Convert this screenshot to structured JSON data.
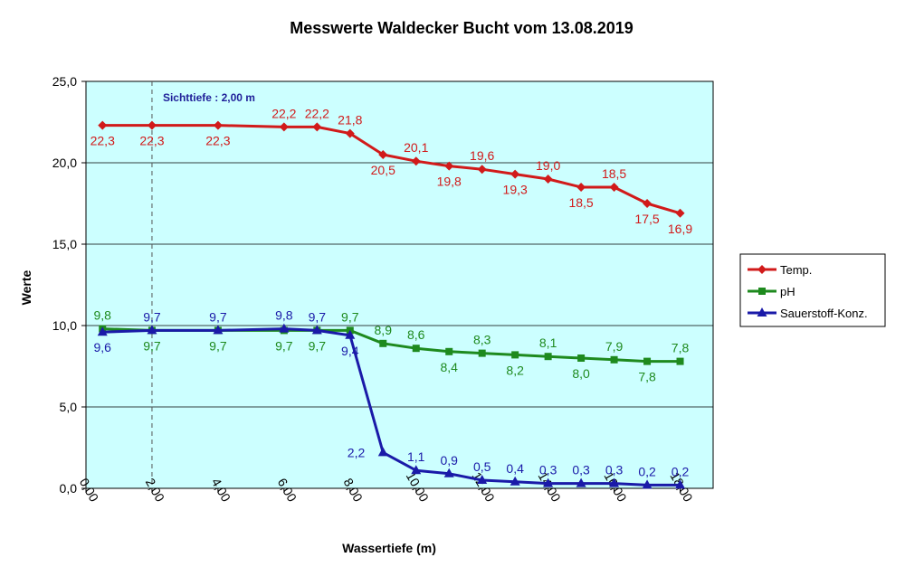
{
  "chart_data": {
    "type": "line",
    "title": "Messwerte Waldecker Bucht vom 13.08.2019",
    "xlabel": "Wassertiefe (m)",
    "ylabel": "Werte",
    "xlim": [
      0,
      19
    ],
    "ylim": [
      0,
      25
    ],
    "x_ticks": [
      "0,00",
      "2,00",
      "4,00",
      "6,00",
      "8,00",
      "10,00",
      "12,00",
      "14,00",
      "16,00",
      "18,00"
    ],
    "x_tick_values": [
      0,
      2,
      4,
      6,
      8,
      10,
      12,
      14,
      16,
      18
    ],
    "y_ticks": [
      "0,0",
      "5,0",
      "10,0",
      "15,0",
      "20,0",
      "25,0"
    ],
    "y_tick_values": [
      0,
      5,
      10,
      15,
      20,
      25
    ],
    "grid": "horizontal",
    "legend_position": "right",
    "annotation": {
      "text": "Sichttiefe : 2,00 m",
      "x": 2
    },
    "series": [
      {
        "name": "Temp.",
        "color": "#d11a1a",
        "marker": "diamond",
        "x": [
          0.5,
          2,
          4,
          6,
          7,
          8,
          9,
          10,
          11,
          12,
          13,
          14,
          15,
          16,
          17,
          18
        ],
        "values": [
          22.3,
          22.3,
          22.3,
          22.2,
          22.2,
          21.8,
          20.5,
          20.1,
          19.8,
          19.6,
          19.3,
          19.0,
          18.5,
          18.5,
          17.5,
          16.9
        ],
        "labels": [
          "22,3",
          "22,3",
          "22,3",
          "22,2",
          "22,2",
          "21,8",
          "20,5",
          "20,1",
          "19,8",
          "19,6",
          "19,3",
          "19,0",
          "18,5",
          "18,5",
          "17,5",
          "16,9"
        ]
      },
      {
        "name": "pH",
        "color": "#1e8a1e",
        "marker": "square",
        "x": [
          0.5,
          2,
          4,
          6,
          7,
          8,
          9,
          10,
          11,
          12,
          13,
          14,
          15,
          16,
          17,
          18
        ],
        "values": [
          9.8,
          9.7,
          9.7,
          9.7,
          9.7,
          9.7,
          8.9,
          8.6,
          8.4,
          8.3,
          8.2,
          8.1,
          8.0,
          7.9,
          7.8,
          7.8
        ],
        "labels": [
          "9,8",
          "9,7",
          "9,7",
          "9,7",
          "9,7",
          "9,7",
          "8,9",
          "8,6",
          "8,4",
          "8,3",
          "8,2",
          "8,1",
          "8,0",
          "7,9",
          "7,8",
          "7,8"
        ]
      },
      {
        "name": "Sauerstoff-Konz.",
        "color": "#1a1aa8",
        "marker": "triangle",
        "x": [
          0.5,
          2,
          4,
          6,
          7,
          8,
          9,
          10,
          11,
          12,
          13,
          14,
          15,
          16,
          17,
          18
        ],
        "values": [
          9.6,
          9.7,
          9.7,
          9.8,
          9.7,
          9.4,
          2.2,
          1.1,
          0.9,
          0.5,
          0.4,
          0.3,
          0.3,
          0.3,
          0.2,
          0.2
        ],
        "labels": [
          "9,6",
          "9,7",
          "9,7",
          "9,8",
          "9,7",
          "9,4",
          "2,2",
          "1,1",
          "0,9",
          "0,5",
          "0,4",
          "0,3",
          "0,3",
          "0,3",
          "0,2",
          "0,2"
        ]
      }
    ]
  }
}
